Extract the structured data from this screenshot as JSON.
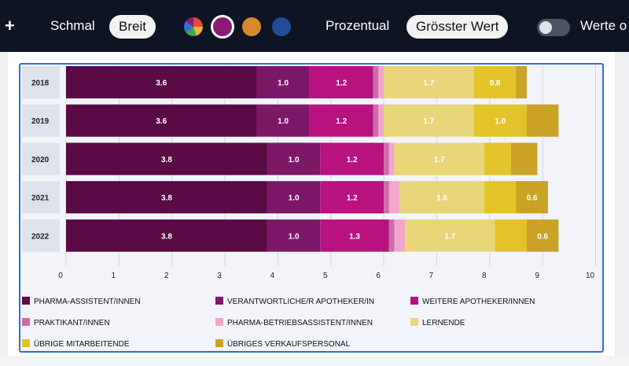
{
  "toolbar": {
    "plus_label": "+",
    "width_label": "Schmal",
    "width_selected": "Breit",
    "percent_label": "Prozentual",
    "sort_selected": "Grösster Wert",
    "values_label": "Werte o"
  },
  "palette": {
    "options": [
      "multicolor",
      "magenta",
      "orange",
      "blue"
    ],
    "colors": [
      "#8b1a75",
      "#d68a2c",
      "#1f4e96"
    ],
    "selected": "magenta"
  },
  "chart_data": {
    "type": "bar",
    "orientation": "horizontal",
    "stacked": true,
    "categories": [
      "2018",
      "2019",
      "2020",
      "2021",
      "2022"
    ],
    "xlim": [
      0,
      10
    ],
    "xticks": [
      "0",
      "1",
      "2",
      "3",
      "4",
      "5",
      "6",
      "7",
      "8",
      "9",
      "10"
    ],
    "grid": true,
    "legend_position": "bottom",
    "series": [
      {
        "name": "PHARMA-ASSISTENT/INNEN",
        "color": "#5a0a45",
        "values": [
          3.6,
          3.6,
          3.8,
          3.8,
          3.8
        ],
        "labels": [
          "3.6",
          "3.6",
          "3.8",
          "3.8",
          "3.8"
        ]
      },
      {
        "name": "VERANTWORTLICHE/R APOTHEKER/IN",
        "color": "#7d1868",
        "values": [
          1.0,
          1.0,
          1.0,
          1.0,
          1.0
        ],
        "labels": [
          "1.0",
          "1.0",
          "1.0",
          "1.0",
          "1.0"
        ]
      },
      {
        "name": "WEITERE APOTHEKER/INNEN",
        "color": "#b8127f",
        "values": [
          1.2,
          1.2,
          1.2,
          1.2,
          1.3
        ],
        "labels": [
          "1.2",
          "1.2",
          "1.2",
          "1.2",
          "1.3"
        ]
      },
      {
        "name": "PRAKTIKANT/INNEN",
        "color": "#cf6aaa",
        "values": [
          0.1,
          0.1,
          0.1,
          0.1,
          0.1
        ],
        "labels": [
          "",
          "",
          "",
          "",
          ""
        ]
      },
      {
        "name": "PHARMA-BETRIEBSASSISTENT/INNEN",
        "color": "#f3a6cb",
        "values": [
          0.1,
          0.1,
          0.1,
          0.2,
          0.2
        ],
        "labels": [
          "",
          "",
          "",
          "",
          ""
        ]
      },
      {
        "name": "LERNENDE",
        "color": "#e8d679",
        "values": [
          1.7,
          1.7,
          1.7,
          1.6,
          1.7
        ],
        "labels": [
          "1.7",
          "1.7",
          "1.7",
          "1.6",
          "1.7"
        ]
      },
      {
        "name": "ÜBRIGE MITARBEITENDE",
        "color": "#e2c42a",
        "values": [
          0.8,
          1.0,
          0.5,
          0.6,
          0.6
        ],
        "labels": [
          "0.8",
          "1.0",
          "",
          "",
          ""
        ]
      },
      {
        "name": "ÜBRIGES VERKAUFSPERSONAL",
        "color": "#c9a226",
        "values": [
          0.2,
          0.6,
          0.5,
          0.6,
          0.6
        ],
        "labels": [
          "",
          "",
          "",
          "0.6",
          "0.6"
        ]
      }
    ]
  }
}
